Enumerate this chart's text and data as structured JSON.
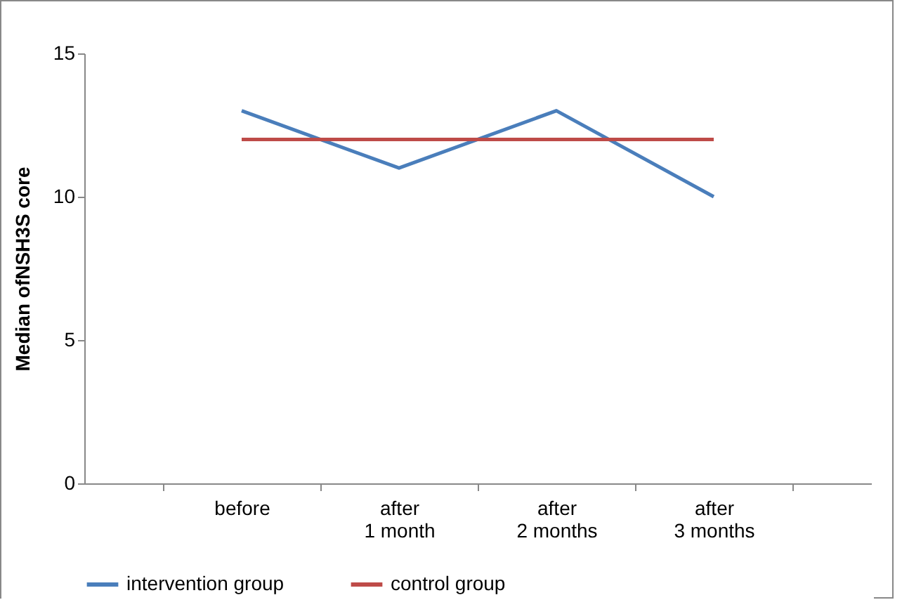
{
  "chart_data": {
    "type": "line",
    "ylabel": "Median ofNSH3S core",
    "categories": [
      "before",
      "after 1 month",
      "after 2 months",
      "after 3 months"
    ],
    "series": [
      {
        "name": "intervention group",
        "color": "#4a7ebb",
        "values": [
          13,
          11,
          13,
          10
        ]
      },
      {
        "name": "control group",
        "color": "#be4b48",
        "values": [
          12,
          12,
          12,
          12
        ]
      }
    ],
    "ylim": [
      0,
      15
    ],
    "yticks": [
      0,
      5,
      10,
      15
    ],
    "grid": false,
    "legend": "bottom",
    "marker": "none",
    "line_style": "solid"
  }
}
